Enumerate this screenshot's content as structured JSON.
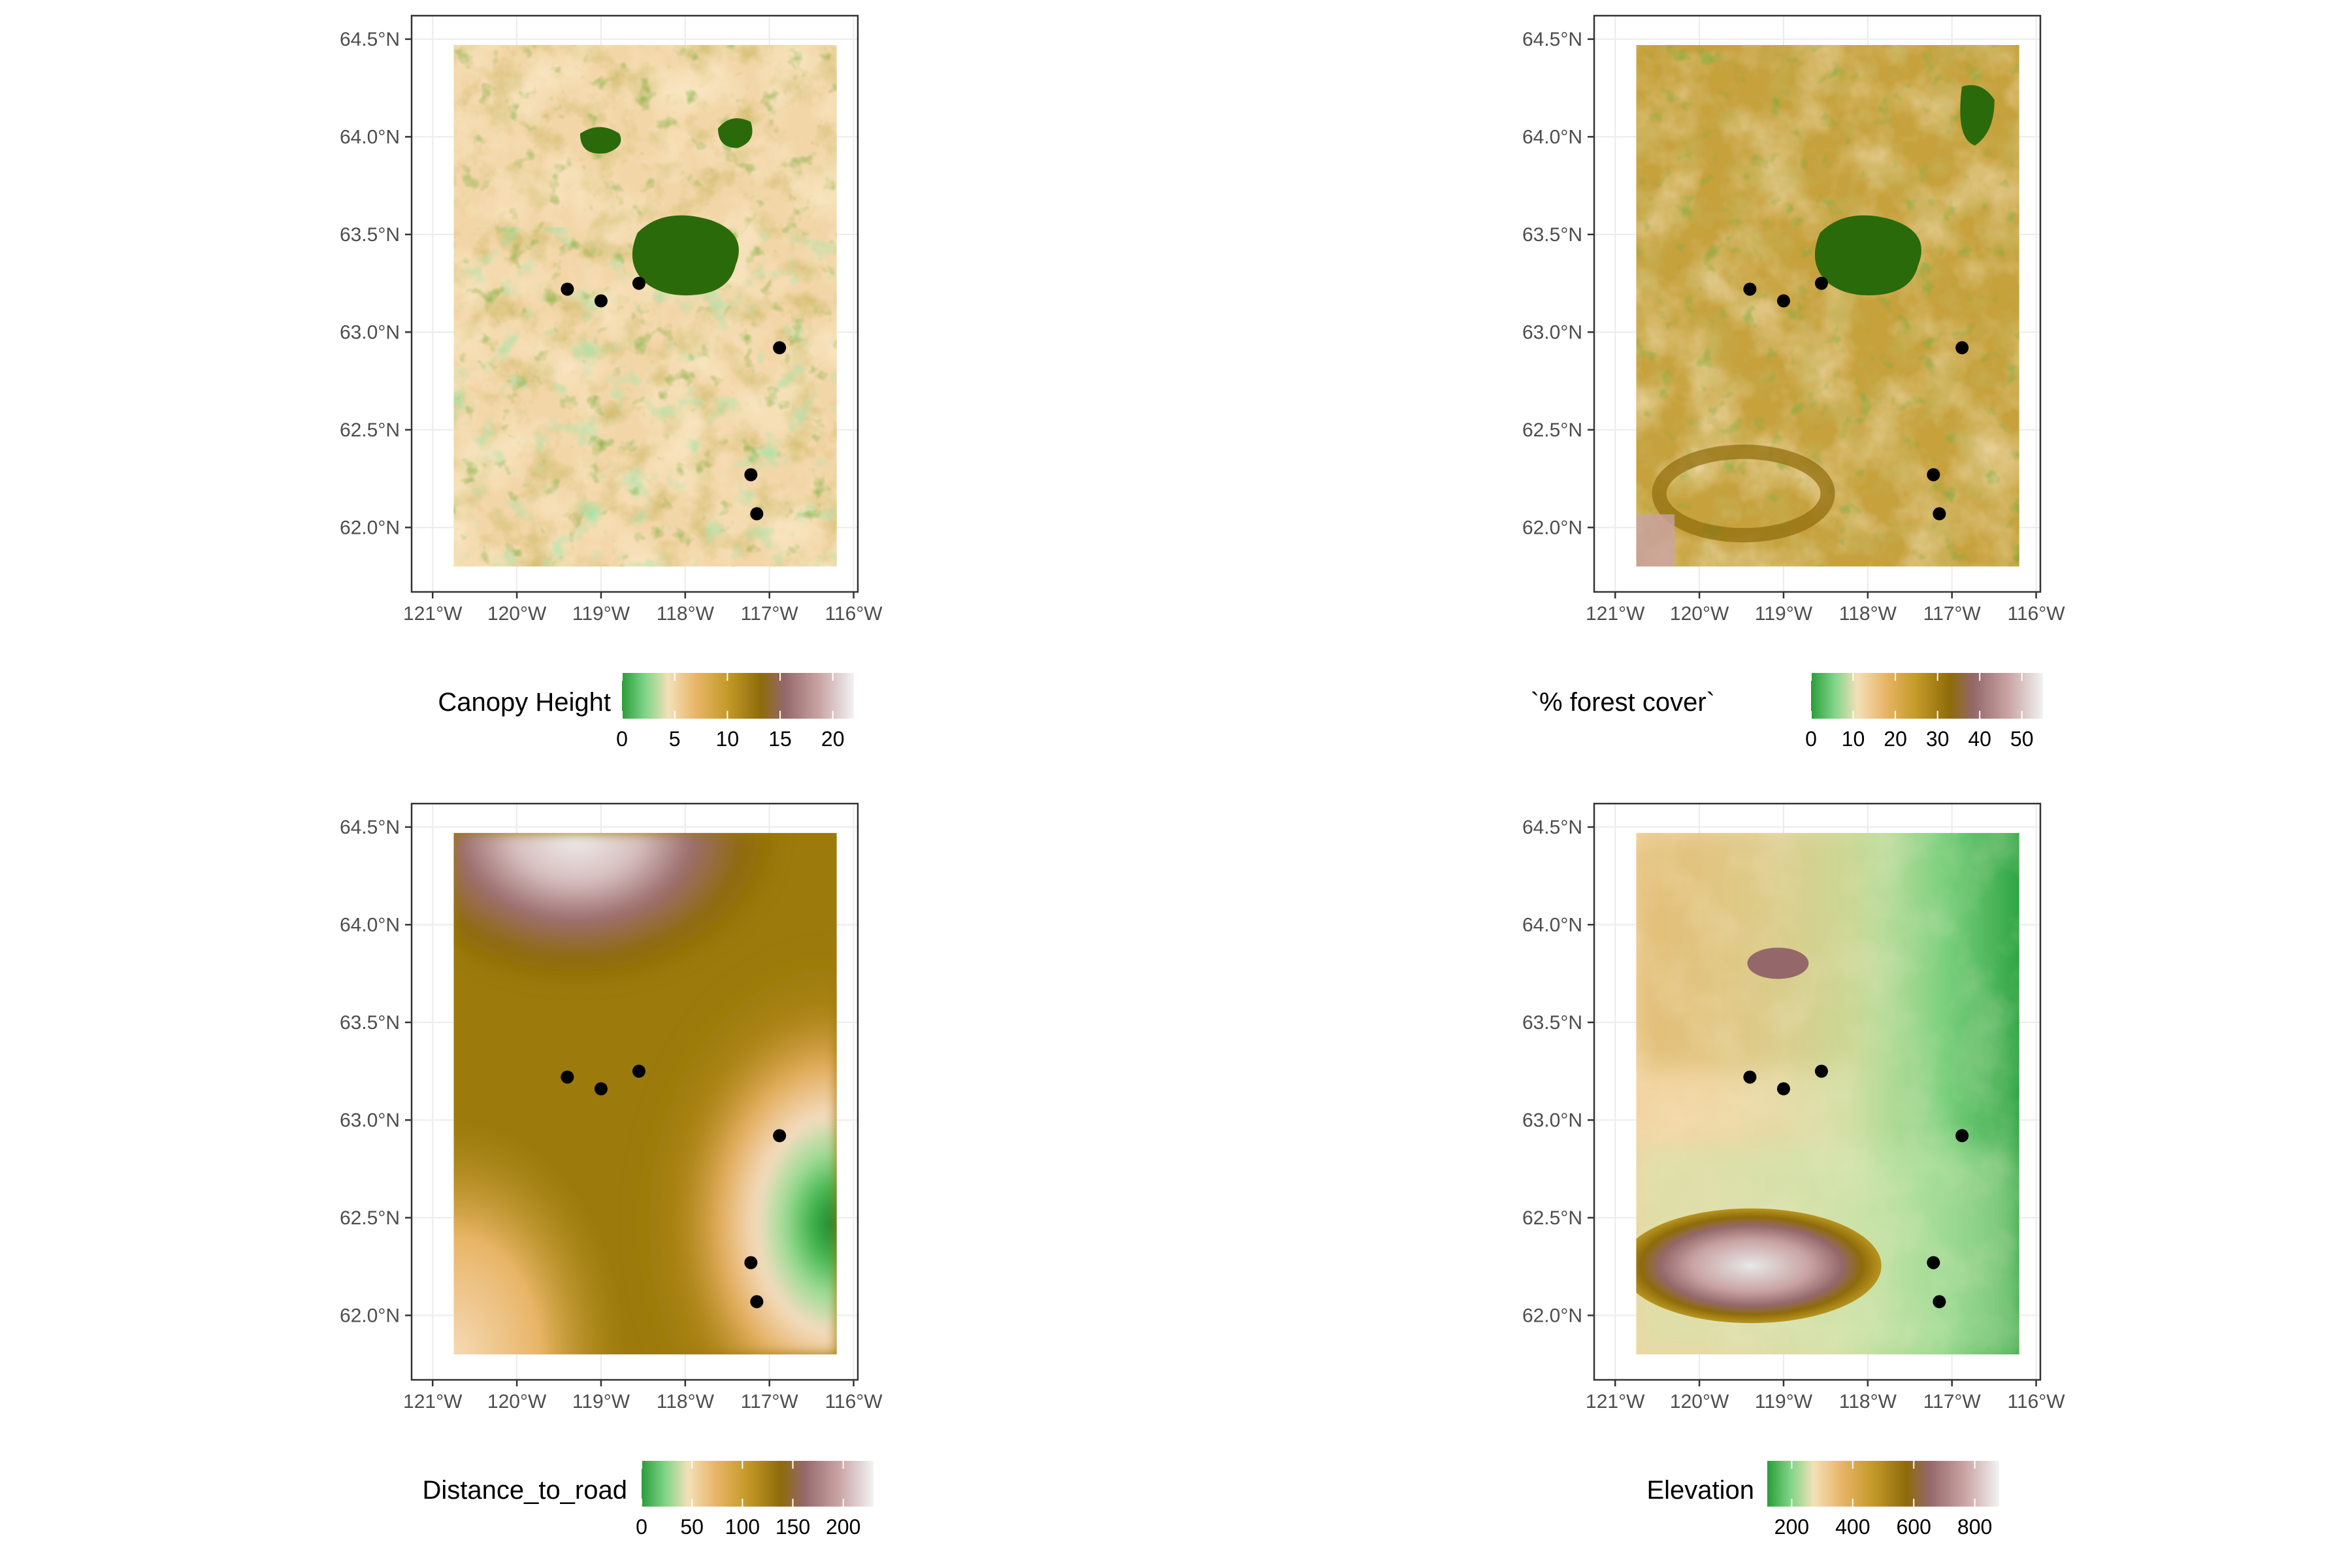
{
  "figure": {
    "palette": [
      "#2a9d3a",
      "#6fd07a",
      "#c9e9b0",
      "#f7dfb2",
      "#e8b567",
      "#b8951f",
      "#8e6b0a",
      "#94686a",
      "#c9a3a3",
      "#ececec"
    ],
    "x_ticks": [
      "121°W",
      "120°W",
      "119°W",
      "118°W",
      "117°W",
      "116°W"
    ],
    "y_ticks": [
      "64.5°N",
      "64.0°N",
      "63.5°N",
      "63.0°N",
      "62.5°N",
      "62.0°N"
    ],
    "x_values": [
      -121,
      -120,
      -119,
      -118,
      -117,
      -116
    ],
    "y_values": [
      64.5,
      64.0,
      63.5,
      63.0,
      62.5,
      62.0
    ],
    "lon_range": [
      -121.25,
      -115.95
    ],
    "lat_range": [
      61.67,
      64.62
    ],
    "raster_extent": {
      "lon": [
        -120.75,
        -116.2
      ],
      "lat": [
        61.8,
        64.47
      ]
    },
    "points": [
      {
        "lon": -119.4,
        "lat": 63.22
      },
      {
        "lon": -119.0,
        "lat": 63.16
      },
      {
        "lon": -118.55,
        "lat": 63.25
      },
      {
        "lon": -116.88,
        "lat": 62.92
      },
      {
        "lon": -117.22,
        "lat": 62.27
      },
      {
        "lon": -117.15,
        "lat": 62.07
      }
    ]
  },
  "panels": [
    {
      "id": "canopy",
      "legend_title": "Canopy Height",
      "legend_min": 0,
      "legend_max": 22,
      "legend_ticks": [
        0,
        5,
        10,
        15,
        20
      ],
      "legend_tick_labels": [
        "0",
        "5",
        "10",
        "15",
        "20"
      ]
    },
    {
      "id": "forest",
      "legend_title": "`% forest cover`",
      "legend_min": 0,
      "legend_max": 55,
      "legend_ticks": [
        0,
        10,
        20,
        30,
        40,
        50
      ],
      "legend_tick_labels": [
        "0",
        "10",
        "20",
        "30",
        "40",
        "50"
      ]
    },
    {
      "id": "road",
      "legend_title": "Distance_to_road",
      "legend_min": 0,
      "legend_max": 230,
      "legend_ticks": [
        0,
        50,
        100,
        150,
        200
      ],
      "legend_tick_labels": [
        "0",
        "50",
        "100",
        "150",
        "200"
      ]
    },
    {
      "id": "elevation",
      "legend_title": "Elevation",
      "legend_min": 120,
      "legend_max": 880,
      "legend_ticks": [
        200,
        400,
        600,
        800
      ],
      "legend_tick_labels": [
        "200",
        "400",
        "600",
        "800"
      ]
    }
  ]
}
